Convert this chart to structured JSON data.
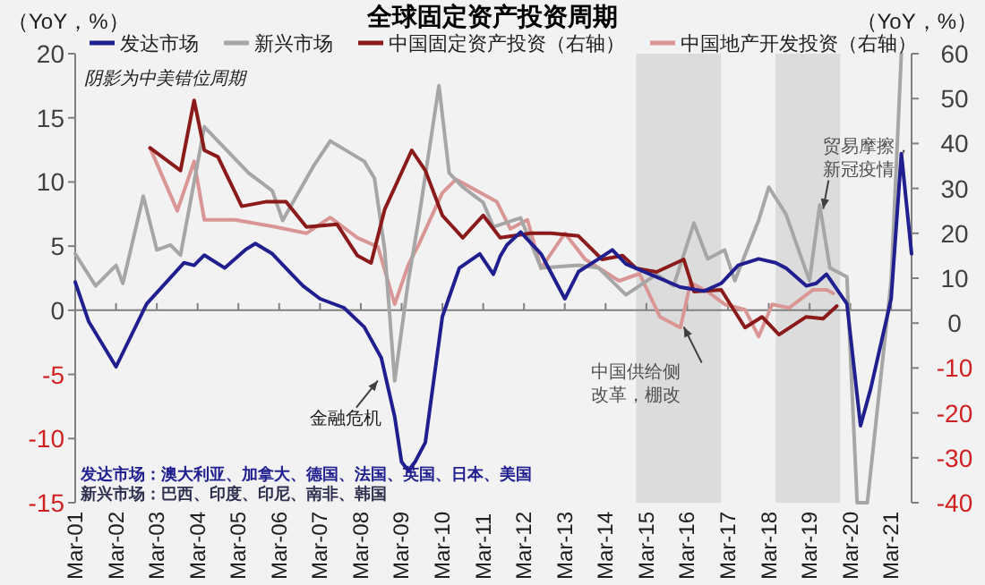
{
  "chart_data": {
    "type": "line",
    "title": "全球固定资产投资周期",
    "ylabel": "（YoY，%）",
    "y2label": "（YoY，%）",
    "legend": "top",
    "xlim": [
      "2001-03",
      "2021-09"
    ],
    "xticks": [
      {
        "value": "2001-03",
        "label": "Mar-01"
      },
      {
        "value": "2002-03",
        "label": "Mar-02"
      },
      {
        "value": "2003-03",
        "label": "Mar-03"
      },
      {
        "value": "2004-03",
        "label": "Mar-04"
      },
      {
        "value": "2005-03",
        "label": "Mar-05"
      },
      {
        "value": "2006-03",
        "label": "Mar-06"
      },
      {
        "value": "2007-03",
        "label": "Mar-07"
      },
      {
        "value": "2008-03",
        "label": "Mar-08"
      },
      {
        "value": "2009-03",
        "label": "Mar-09"
      },
      {
        "value": "2010-03",
        "label": "Mar-10"
      },
      {
        "value": "2011-03",
        "label": "Mar-11"
      },
      {
        "value": "2012-03",
        "label": "Mar-12"
      },
      {
        "value": "2013-03",
        "label": "Mar-13"
      },
      {
        "value": "2014-03",
        "label": "Mar-14"
      },
      {
        "value": "2015-03",
        "label": "Mar-15"
      },
      {
        "value": "2016-03",
        "label": "Mar-16"
      },
      {
        "value": "2017-03",
        "label": "Mar-17"
      },
      {
        "value": "2018-03",
        "label": "Mar-18"
      },
      {
        "value": "2019-03",
        "label": "Mar-19"
      },
      {
        "value": "2020-03",
        "label": "Mar-20"
      },
      {
        "value": "2021-03",
        "label": "Mar-21"
      }
    ],
    "ylim": [
      -15,
      20
    ],
    "yticks": [
      -15,
      -10,
      -5,
      0,
      5,
      10,
      15,
      20
    ],
    "y2lim": [
      -40,
      60
    ],
    "y2ticks": [
      -40,
      -30,
      -20,
      -10,
      0,
      10,
      20,
      30,
      40,
      50,
      60
    ],
    "bands": [
      {
        "axis": "x",
        "from": "2014-12",
        "to": "2017-01",
        "color": "#dcdcdc"
      },
      {
        "axis": "x",
        "from": "2018-05",
        "to": "2019-12",
        "color": "#dcdcdc"
      }
    ],
    "series": [
      {
        "name": "发达市场",
        "color": "#1f1f8f",
        "x": [
          "2001-03",
          "2001-07",
          "2002-03",
          "2002-12",
          "2003-11",
          "2004-02",
          "2004-05",
          "2004-11",
          "2005-05",
          "2005-08",
          "2006-01",
          "2006-06",
          "2006-10",
          "2007-03",
          "2007-10",
          "2008-04",
          "2008-09",
          "2009-01",
          "2009-03",
          "2009-05",
          "2009-07",
          "2009-10",
          "2010-03",
          "2010-08",
          "2011-02",
          "2011-06",
          "2011-08",
          "2011-10",
          "2012-02",
          "2012-08",
          "2013-03",
          "2013-07",
          "2014-01",
          "2014-05",
          "2014-09",
          "2015-06",
          "2016-01",
          "2016-08",
          "2017-01",
          "2017-06",
          "2017-12",
          "2018-05",
          "2018-08",
          "2019-02",
          "2019-05",
          "2019-08",
          "2020-02",
          "2020-06",
          "2020-09",
          "2021-03",
          "2021-06",
          "2021-09"
        ],
        "values": [
          2.2,
          -0.9,
          -4.4,
          0.5,
          3.7,
          3.5,
          4.3,
          3.3,
          4.7,
          5.2,
          4.4,
          3.0,
          1.9,
          0.9,
          0.2,
          -1.3,
          -3.7,
          -8.3,
          -11.8,
          -12.5,
          -11.8,
          -10.3,
          -0.5,
          3.3,
          4.4,
          2.8,
          4.2,
          5.1,
          6.1,
          4.4,
          0.9,
          3.0,
          4.0,
          4.7,
          3.6,
          2.6,
          1.8,
          1.5,
          2.1,
          3.5,
          4.0,
          3.7,
          3.3,
          1.9,
          2.1,
          2.8,
          0.5,
          -9.0,
          -6.1,
          0.9,
          12.2,
          4.4
        ]
      },
      {
        "name": "新兴市场",
        "color": "#a6a6a6",
        "x": [
          "2001-03",
          "2001-09",
          "2002-03",
          "2002-05",
          "2002-11",
          "2003-03",
          "2003-07",
          "2003-10",
          "2004-05",
          "2005-06",
          "2006-01",
          "2006-04",
          "2007-01",
          "2007-06",
          "2008-04",
          "2008-07",
          "2008-10",
          "2009-01",
          "2009-05",
          "2009-08",
          "2010-02",
          "2010-05",
          "2010-09",
          "2011-03",
          "2011-06",
          "2012-02",
          "2012-08",
          "2013-07",
          "2014-01",
          "2014-09",
          "2015-06",
          "2015-11",
          "2016-05",
          "2016-09",
          "2017-02",
          "2017-05",
          "2017-12",
          "2018-03",
          "2018-08",
          "2019-03",
          "2019-06",
          "2019-09",
          "2020-02",
          "2020-05",
          "2020-08",
          "2021-03",
          "2021-06"
        ],
        "values": [
          4.4,
          1.9,
          3.5,
          2.1,
          8.9,
          4.7,
          5.1,
          4.3,
          14.3,
          10.7,
          9.3,
          7.0,
          11.2,
          13.2,
          11.6,
          10.3,
          4.7,
          -5.5,
          2.3,
          7.0,
          17.5,
          10.7,
          9.6,
          8.4,
          6.5,
          7.2,
          3.3,
          3.5,
          3.3,
          1.2,
          2.8,
          1.9,
          6.8,
          4.0,
          4.7,
          2.3,
          7.0,
          9.6,
          7.5,
          2.3,
          8.2,
          3.3,
          2.6,
          -15,
          -15,
          2.3,
          20
        ]
      },
      {
        "name": "中国固定资产投资（右轴）",
        "color": "#8b1a1a",
        "axis": "y2",
        "x": [
          "2003-01",
          "2003-10",
          "2004-02",
          "2004-05",
          "2004-09",
          "2005-04",
          "2005-11",
          "2006-05",
          "2006-11",
          "2007-08",
          "2008-02",
          "2008-06",
          "2008-10",
          "2009-06",
          "2009-10",
          "2010-03",
          "2010-09",
          "2011-03",
          "2011-08",
          "2012-05",
          "2012-11",
          "2013-07",
          "2014-02",
          "2014-08",
          "2014-12",
          "2015-06",
          "2016-02",
          "2016-05",
          "2017-01",
          "2017-08",
          "2018-01",
          "2018-06",
          "2019-02",
          "2019-07",
          "2019-11"
        ],
        "values": [
          39,
          34,
          49.6,
          38.5,
          37,
          26,
          27,
          27,
          21.4,
          22,
          15,
          13.4,
          25.3,
          38.5,
          34,
          24,
          19,
          24,
          19,
          20,
          20,
          19.4,
          14.2,
          15,
          12.2,
          11.4,
          14.2,
          7,
          7.4,
          -1,
          1.4,
          -2.6,
          1.4,
          1,
          3.8
        ]
      },
      {
        "name": "中国地产开发投资（右轴）",
        "color": "#d99694",
        "axis": "y2",
        "x": [
          "2003-01",
          "2003-09",
          "2004-02",
          "2004-05",
          "2005-02",
          "2006-02",
          "2006-11",
          "2007-06",
          "2008-02",
          "2008-08",
          "2009-01",
          "2009-05",
          "2009-08",
          "2010-03",
          "2010-07",
          "2011-07",
          "2011-11",
          "2012-04",
          "2012-08",
          "2013-03",
          "2013-09",
          "2014-07",
          "2015-01",
          "2015-07",
          "2016-01",
          "2016-04",
          "2016-09",
          "2017-02",
          "2017-08",
          "2017-12",
          "2018-04",
          "2018-09",
          "2019-04",
          "2019-08",
          "2019-10"
        ],
        "values": [
          39,
          25,
          36,
          23,
          23,
          21.4,
          20,
          23.5,
          19,
          17,
          4.2,
          13,
          17.4,
          29,
          32,
          27,
          21,
          23,
          12.2,
          20,
          14.2,
          9.4,
          11,
          1.4,
          -1,
          9,
          7,
          4.2,
          3,
          -3,
          4.2,
          3.4,
          7.4,
          7.4,
          6.6
        ]
      }
    ],
    "annotations": [
      "阴影为中美错位周期",
      {
        "text": "金融危机",
        "x": "2008-08",
        "y": -5.5
      },
      {
        "text": "中国供给侧改革，棚改",
        "x": "2016-02",
        "y": -1.3
      },
      {
        "text": "贸易摩擦，新冠疫情",
        "x": "2019-07",
        "y": 7.9
      },
      "发达市场：澳大利亚、加拿大、德国、法国、英国、日本、美国",
      "新兴市场：巴西、印度、印尼、南非、韩国"
    ]
  }
}
